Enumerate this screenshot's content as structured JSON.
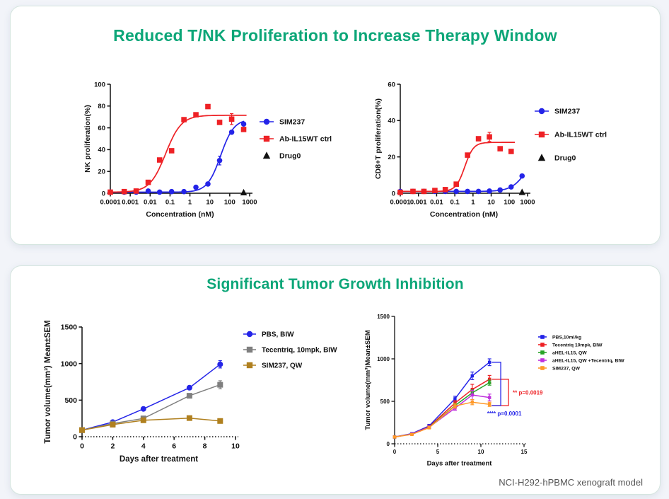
{
  "page": {
    "accent_green": "#0ca678",
    "background": "#f2f4f9"
  },
  "cards": [
    {
      "title": "Reduced T/NK Proliferation to Increase Therapy Window"
    },
    {
      "title": "Significant Tumor Growth Inhibition",
      "caption": "NCI-H292-hPBMC  xenograft model"
    }
  ],
  "chart_data": [
    {
      "id": "chart-nk",
      "type": "scatter",
      "xscale": "log",
      "xlabel": "Concentration (nM)",
      "ylabel": "NK proliferation(%)",
      "xlim": [
        0.0001,
        1000
      ],
      "xticks": [
        0.0001,
        0.001,
        0.01,
        0.1,
        1,
        10,
        100,
        1000
      ],
      "xtick_labels": [
        "0.0001",
        "0.001",
        "0.01",
        "0.1",
        "1",
        "10",
        "100",
        "1000"
      ],
      "ylim": [
        0,
        100
      ],
      "yticks": [
        0,
        20,
        40,
        60,
        80,
        100
      ],
      "series": [
        {
          "name": "SIM237",
          "color": "#2424e8",
          "marker": "circle",
          "x": [
            0.0001,
            0.0005,
            0.002,
            0.008,
            0.03,
            0.12,
            0.5,
            2,
            8,
            31,
            125,
            500
          ],
          "y": [
            1,
            1,
            1,
            2,
            1,
            1.5,
            1.5,
            5.5,
            8.5,
            30,
            56,
            63.5
          ],
          "err": [
            0,
            0,
            0,
            0,
            0,
            0,
            0,
            0,
            0,
            4,
            0,
            0
          ],
          "curve": {
            "bottom": 1,
            "top": 68,
            "ec50": 35,
            "hill": 1.3,
            "range": [
              0.0001,
              520
            ]
          }
        },
        {
          "name": "Ab-IL15WT ctrl",
          "color": "#ee2125",
          "marker": "square",
          "x": [
            0.0001,
            0.0005,
            0.002,
            0.008,
            0.03,
            0.12,
            0.5,
            2,
            8,
            31,
            125,
            500
          ],
          "y": [
            1,
            1.5,
            2,
            10,
            30.5,
            39,
            67.5,
            72,
            79.5,
            65,
            68,
            58.5
          ],
          "err": [
            0,
            0,
            0,
            0,
            0,
            0,
            0,
            0,
            0,
            0,
            5,
            0
          ],
          "curve": {
            "bottom": 1,
            "top": 71.5,
            "ec50": 0.06,
            "hill": 1.1,
            "range": [
              0.0001,
              700
            ]
          }
        },
        {
          "name": "Drug0",
          "color": "#111111",
          "marker": "triangle",
          "legend_line": false,
          "x": [
            500
          ],
          "y": [
            0.5
          ],
          "err": [
            0
          ]
        }
      ]
    },
    {
      "id": "chart-cd8",
      "type": "scatter",
      "xscale": "log",
      "xlabel": "Concentration (nM)",
      "ylabel": "CD8+T proliferation(%)",
      "xlim": [
        0.0001,
        1000
      ],
      "xticks": [
        0.0001,
        0.001,
        0.01,
        0.1,
        1,
        10,
        100,
        1000
      ],
      "xtick_labels": [
        "0.0001",
        "0.001",
        "0.01",
        "0.1",
        "1",
        "10",
        "100",
        "1000"
      ],
      "ylim": [
        0,
        60
      ],
      "yticks": [
        0,
        20,
        40,
        60
      ],
      "series": [
        {
          "name": "SIM237",
          "color": "#2424e8",
          "marker": "circle",
          "x": [
            0.0001,
            0.0005,
            0.002,
            0.008,
            0.03,
            0.12,
            0.5,
            2,
            8,
            31,
            125,
            500
          ],
          "y": [
            1,
            1,
            1,
            1,
            1,
            1,
            1,
            1,
            1.2,
            1.8,
            3.5,
            9.5
          ],
          "err": [
            0,
            0,
            0,
            0,
            0,
            0,
            0,
            0,
            0,
            0,
            0,
            0
          ],
          "curve": {
            "bottom": 1,
            "top": 30,
            "ec50": 1300,
            "hill": 1,
            "range": [
              0.0001,
              520
            ]
          }
        },
        {
          "name": "Ab-IL15WT ctrl",
          "color": "#ee2125",
          "marker": "square",
          "x": [
            0.0001,
            0.0005,
            0.002,
            0.008,
            0.03,
            0.12,
            0.5,
            2,
            8,
            31,
            125
          ],
          "y": [
            0.5,
            1,
            1,
            1.5,
            2,
            5,
            21,
            30,
            31,
            24.5,
            23
          ],
          "err": [
            0,
            0,
            0,
            0,
            0,
            0,
            0,
            0,
            2.5,
            0,
            0
          ],
          "curve": {
            "bottom": 1,
            "top": 28,
            "ec50": 0.35,
            "hill": 1.8,
            "range": [
              0.0001,
              200
            ]
          }
        },
        {
          "name": "Drug0",
          "color": "#111111",
          "marker": "triangle",
          "legend_line": false,
          "x": [
            500
          ],
          "y": [
            0.5
          ],
          "err": [
            0
          ]
        }
      ]
    },
    {
      "id": "chart-tumor-left",
      "type": "line",
      "xscale": "linear",
      "xlabel": "Days after treatment",
      "ylabel": "Tumor volume(mm³) Mean±SEM",
      "x": [
        0,
        2,
        4,
        7,
        9
      ],
      "xlim": [
        0,
        10
      ],
      "xticks": [
        0,
        2,
        4,
        6,
        8,
        10
      ],
      "ylim": [
        0,
        1500
      ],
      "yticks": [
        0,
        500,
        1000,
        1500
      ],
      "series": [
        {
          "name": "PBS, BIW",
          "color": "#2424e8",
          "marker": "circle",
          "y": [
            90,
            200,
            380,
            670,
            990
          ],
          "err": [
            10,
            14,
            18,
            25,
            50
          ]
        },
        {
          "name": "Tecentriq, 10mpk, BIW",
          "color": "#7f7f7f",
          "marker": "square",
          "y": [
            90,
            180,
            250,
            560,
            710
          ],
          "err": [
            8,
            12,
            15,
            25,
            55
          ]
        },
        {
          "name": "SIM237, QW",
          "color": "#b0801f",
          "marker": "square",
          "y": [
            90,
            165,
            225,
            255,
            215
          ],
          "err": [
            8,
            10,
            12,
            15,
            18
          ]
        }
      ]
    },
    {
      "id": "chart-tumor-right",
      "type": "line",
      "xscale": "linear",
      "xlabel": "Days after treatment",
      "ylabel": "Tumor volume(mm³)Mean±SEM",
      "x": [
        0,
        2,
        4,
        7,
        9,
        11
      ],
      "xlim": [
        0,
        15
      ],
      "xticks": [
        0,
        5,
        10,
        15
      ],
      "ylim": [
        0,
        1500
      ],
      "yticks": [
        0,
        500,
        1000,
        1500
      ],
      "series": [
        {
          "name": "PBS,10ml/kg",
          "color": "#2424e8",
          "marker": "square",
          "y": [
            80,
            120,
            210,
            530,
            800,
            960
          ],
          "err": [
            8,
            10,
            18,
            30,
            45,
            40
          ]
        },
        {
          "name": "Tecentriq 10mpk, BIW",
          "color": "#ee2125",
          "marker": "square",
          "y": [
            80,
            115,
            200,
            480,
            640,
            760
          ],
          "err": [
            8,
            10,
            15,
            28,
            60,
            45
          ]
        },
        {
          "name": "aHEL-IL15, QW",
          "color": "#28a428",
          "marker": "square",
          "y": [
            80,
            115,
            195,
            450,
            600,
            720
          ],
          "err": [
            8,
            10,
            15,
            25,
            35,
            30
          ]
        },
        {
          "name": "aHEL-IL15, QW +Tecentriq, BIW",
          "color": "#bf30dd",
          "marker": "square",
          "y": [
            80,
            115,
            195,
            420,
            575,
            545
          ],
          "err": [
            8,
            10,
            15,
            25,
            55,
            40
          ]
        },
        {
          "name": "SIM237, QW",
          "color": "#ff9928",
          "marker": "square",
          "y": [
            80,
            110,
            190,
            445,
            490,
            465
          ],
          "err": [
            8,
            10,
            15,
            25,
            30,
            25
          ]
        }
      ],
      "annotations": [
        {
          "text": "** p=0.0019",
          "color": "#ee2125",
          "bracket_x": 13.2,
          "y_top": 760,
          "y_bottom": 450,
          "label_pos": "right"
        },
        {
          "text": "**** p=0.0001",
          "color": "#2424e8",
          "bracket_x": 12.3,
          "y_top": 960,
          "y_bottom": 450,
          "label_pos": "below"
        }
      ]
    }
  ]
}
